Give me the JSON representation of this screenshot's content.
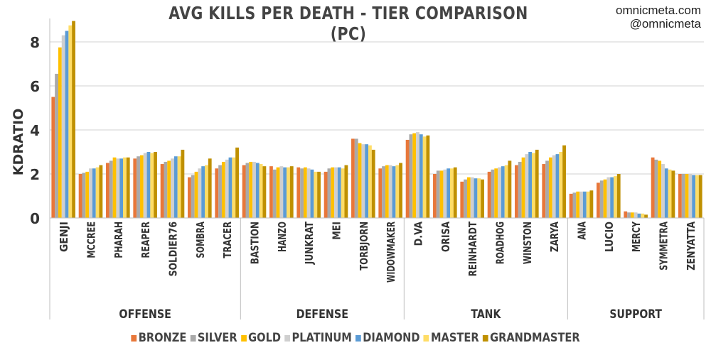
{
  "title": "AVG KILLS PER DEATH - TIER COMPARISON (PC)",
  "credit": {
    "site": "omnicmeta.com",
    "handle": "@omnicmeta"
  },
  "chart_data": {
    "type": "bar",
    "title": "AVG KILLS PER DEATH - TIER COMPARISON (PC)",
    "xlabel": "",
    "ylabel": "KDRATIO",
    "ylim": [
      0,
      9
    ],
    "yticks": [
      0,
      2,
      4,
      6,
      8
    ],
    "grid": true,
    "legend_position": "bottom",
    "groups": [
      {
        "name": "OFFENSE",
        "categories": [
          "GENJI",
          "MCCREE",
          "PHARAH",
          "REAPER",
          "SOLDIER76",
          "SOMBRA",
          "TRACER"
        ]
      },
      {
        "name": "DEFENSE",
        "categories": [
          "BASTION",
          "HANZO",
          "JUNKRAT",
          "MEI",
          "TORBJORN",
          "WIDOWMAKER"
        ]
      },
      {
        "name": "TANK",
        "categories": [
          "D.VA",
          "ORISA",
          "REINHARDT",
          "ROADHOG",
          "WINSTON",
          "ZARYA"
        ]
      },
      {
        "name": "SUPPORT",
        "categories": [
          "ANA",
          "LUCIO",
          "MERCY",
          "SYMMETRA",
          "ZENYATTA"
        ]
      }
    ],
    "categories": [
      "GENJI",
      "MCCREE",
      "PHARAH",
      "REAPER",
      "SOLDIER76",
      "SOMBRA",
      "TRACER",
      "BASTION",
      "HANZO",
      "JUNKRAT",
      "MEI",
      "TORBJORN",
      "WIDOWMAKER",
      "D.VA",
      "ORISA",
      "REINHARDT",
      "ROADHOG",
      "WINSTON",
      "ZARYA",
      "ANA",
      "LUCIO",
      "MERCY",
      "SYMMETRA",
      "ZENYATTA"
    ],
    "series": [
      {
        "name": "BRONZE",
        "color": "#E8773A",
        "values": [
          5.5,
          2.0,
          2.5,
          2.7,
          2.45,
          1.85,
          2.25,
          2.4,
          2.35,
          2.3,
          2.1,
          3.6,
          2.25,
          3.55,
          2.0,
          1.65,
          2.1,
          2.4,
          2.45,
          1.1,
          1.6,
          0.3,
          2.75,
          2.0
        ]
      },
      {
        "name": "SILVER",
        "color": "#A9A9A9",
        "values": [
          6.55,
          2.05,
          2.6,
          2.8,
          2.55,
          1.95,
          2.4,
          2.5,
          2.2,
          2.25,
          2.25,
          3.6,
          2.35,
          3.8,
          2.15,
          1.75,
          2.2,
          2.55,
          2.6,
          1.15,
          1.7,
          0.25,
          2.65,
          2.0
        ]
      },
      {
        "name": "GOLD",
        "color": "#FFC000",
        "values": [
          7.75,
          2.1,
          2.75,
          2.85,
          2.6,
          2.1,
          2.55,
          2.55,
          2.3,
          2.3,
          2.3,
          3.4,
          2.4,
          3.85,
          2.15,
          1.85,
          2.25,
          2.75,
          2.75,
          1.2,
          1.75,
          0.25,
          2.6,
          2.0
        ]
      },
      {
        "name": "PLATINUM",
        "color": "#CFCFCF",
        "values": [
          8.3,
          2.25,
          2.7,
          2.95,
          2.7,
          2.25,
          2.65,
          2.55,
          2.35,
          2.25,
          2.3,
          3.35,
          2.4,
          3.9,
          2.2,
          1.85,
          2.3,
          2.9,
          2.85,
          1.2,
          1.85,
          0.25,
          2.45,
          2.0
        ]
      },
      {
        "name": "DIAMOND",
        "color": "#5B9BD5",
        "values": [
          8.5,
          2.25,
          2.7,
          3.0,
          2.8,
          2.35,
          2.75,
          2.5,
          2.3,
          2.2,
          2.3,
          3.35,
          2.35,
          3.8,
          2.25,
          1.8,
          2.35,
          3.0,
          2.9,
          1.2,
          1.85,
          0.2,
          2.25,
          1.95
        ]
      },
      {
        "name": "MASTER",
        "color": "#FFDD66",
        "values": [
          8.75,
          2.3,
          2.75,
          2.95,
          2.8,
          2.4,
          2.75,
          2.45,
          2.3,
          2.1,
          2.25,
          3.3,
          2.4,
          3.7,
          2.25,
          1.8,
          2.4,
          2.95,
          3.0,
          1.2,
          1.9,
          0.2,
          2.2,
          1.95
        ]
      },
      {
        "name": "GRANDMASTER",
        "color": "#BF9000",
        "values": [
          8.95,
          2.4,
          2.75,
          3.0,
          3.1,
          2.7,
          3.2,
          2.35,
          2.35,
          2.1,
          2.4,
          3.1,
          2.5,
          3.75,
          2.3,
          1.75,
          2.6,
          3.1,
          3.3,
          1.25,
          2.0,
          0.15,
          2.15,
          1.95
        ]
      }
    ]
  }
}
